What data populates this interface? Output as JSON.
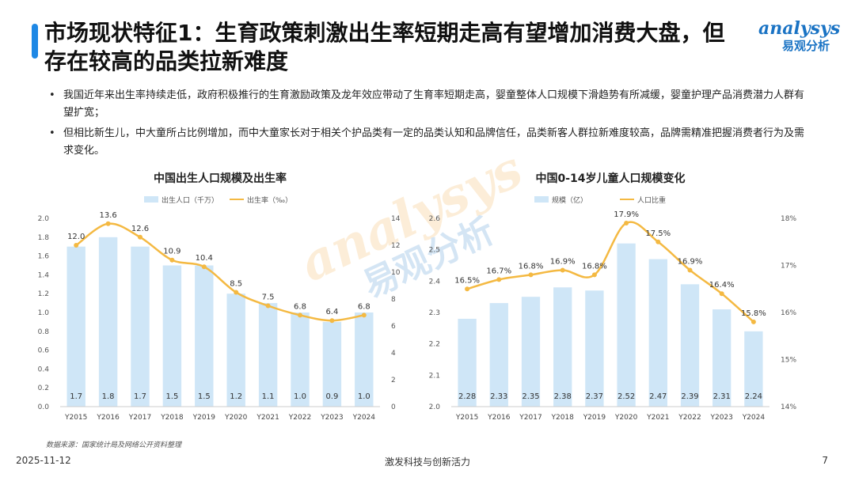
{
  "header": {
    "title": "市场现状特征1：生育政策刺激出生率短期走高有望增加消费大盘，但存在较高的品类拉新难度"
  },
  "logo": {
    "top": "analysys",
    "bottom": "易观分析"
  },
  "bullets": [
    "我国近年来出生率持续走低，政府积极推行的生育激励政策及龙年效应带动了生育率短期走高，婴童整体人口规模下滑趋势有所减缓，婴童护理产品消费潜力人群有望扩宽；",
    "但相比新生儿，中大童所占比例增加，而中大童家长对于相关个护品类有一定的品类认知和品牌信任，品类新客人群拉新难度较高，品牌需精准把握消费者行为及需求变化。"
  ],
  "chart_data": [
    {
      "type": "bar+line",
      "title": "中国出生人口规模及出生率",
      "categories": [
        "Y2015",
        "Y2016",
        "Y2017",
        "Y2018",
        "Y2019",
        "Y2020",
        "Y2021",
        "Y2022",
        "Y2023",
        "Y2024"
      ],
      "series": [
        {
          "name": "出生人口（千万）",
          "type": "bar",
          "axis": "left",
          "values": [
            1.7,
            1.8,
            1.7,
            1.5,
            1.5,
            1.2,
            1.1,
            1.0,
            0.9,
            1.0
          ],
          "labels": [
            "1.7",
            "1.8",
            "1.7",
            "1.5",
            "1.5",
            "1.2",
            "1.1",
            "1.0",
            "0.9",
            "1.0"
          ],
          "color": "#cfe6f7"
        },
        {
          "name": "出生率（‰）",
          "type": "line",
          "axis": "right",
          "values": [
            12.0,
            13.6,
            12.6,
            10.9,
            10.4,
            8.5,
            7.5,
            6.8,
            6.4,
            6.8
          ],
          "labels": [
            "12.0",
            "13.6",
            "12.6",
            "10.9",
            "10.4",
            "8.5",
            "7.5",
            "6.8",
            "6.4",
            "6.8"
          ],
          "color": "#f4b942"
        }
      ],
      "yleft": {
        "min": 0,
        "max": 2.0,
        "step": 0.2,
        "ticks": [
          "0.0",
          "0.2",
          "0.4",
          "0.6",
          "0.8",
          "1.0",
          "1.2",
          "1.4",
          "1.6",
          "1.8",
          "2.0"
        ]
      },
      "yright": {
        "min": 0,
        "max": 14,
        "step": 2,
        "ticks": [
          "0",
          "2",
          "4",
          "6",
          "8",
          "10",
          "12",
          "14"
        ]
      },
      "legend": "top"
    },
    {
      "type": "bar+line",
      "title": "中国0-14岁儿童人口规模变化",
      "categories": [
        "Y2015",
        "Y2016",
        "Y2017",
        "Y2018",
        "Y2019",
        "Y2020",
        "Y2021",
        "Y2022",
        "Y2023",
        "Y2024"
      ],
      "series": [
        {
          "name": "规模（亿）",
          "type": "bar",
          "axis": "left",
          "values": [
            2.28,
            2.33,
            2.35,
            2.38,
            2.37,
            2.52,
            2.47,
            2.39,
            2.31,
            2.24
          ],
          "labels": [
            "2.28",
            "2.33",
            "2.35",
            "2.38",
            "2.37",
            "2.52",
            "2.47",
            "2.39",
            "2.31",
            "2.24"
          ],
          "color": "#cfe6f7"
        },
        {
          "name": "人口比重",
          "type": "line",
          "axis": "right",
          "values": [
            16.5,
            16.7,
            16.8,
            16.9,
            16.8,
            17.9,
            17.5,
            16.9,
            16.4,
            15.8
          ],
          "labels": [
            "16.5%",
            "16.7%",
            "16.8%",
            "16.9%",
            "16.8%",
            "17.9%",
            "17.5%",
            "16.9%",
            "16.4%",
            "15.8%"
          ],
          "color": "#f4b942"
        }
      ],
      "yleft": {
        "min": 2.0,
        "max": 2.6,
        "step": 0.1,
        "ticks": [
          "2.0",
          "2.1",
          "2.2",
          "2.3",
          "2.4",
          "2.5",
          "2.6"
        ]
      },
      "yright": {
        "min": 14,
        "max": 18,
        "step": 1,
        "ticks": [
          "14%",
          "15%",
          "16%",
          "17%",
          "18%"
        ]
      },
      "legend": "top"
    }
  ],
  "source": "数据来源：国家统计局及网络公开资料整理",
  "footer": {
    "date": "2025-11-12",
    "center": "激发科技与创新活力",
    "page": "7"
  }
}
